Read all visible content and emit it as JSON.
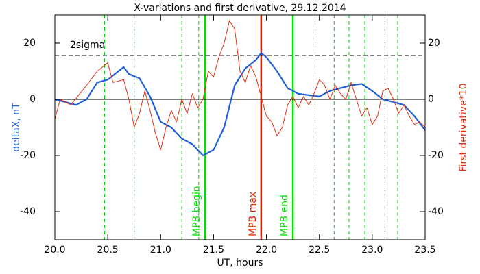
{
  "chart_data": {
    "type": "line",
    "title": "X-variations and first derivative, 29.12.2014",
    "xlabel": "UT, hours",
    "ylabel": "deltaX, nT",
    "y2label": "First derivative*10",
    "ylabel_color": "#1f5fd6",
    "y2label_color": "#e03010",
    "xlim": [
      20,
      23.5
    ],
    "xticks": [
      {
        "value": 20,
        "label": "20.0"
      },
      {
        "value": 20.5,
        "label": "20.5"
      },
      {
        "value": 21,
        "label": "21.0"
      },
      {
        "value": 21.5,
        "label": "21.5"
      },
      {
        "value": 22,
        "label": "22.0"
      },
      {
        "value": 22.5,
        "label": "22.5"
      },
      {
        "value": 23,
        "label": "23.0"
      },
      {
        "value": 23.5,
        "label": "23.5"
      }
    ],
    "ylim": [
      -50,
      30
    ],
    "yticks": [
      -40,
      -20,
      0,
      20
    ],
    "y2lim": [
      -50,
      30
    ],
    "y2ticks": [
      -40,
      -20,
      0,
      20
    ],
    "series": [
      {
        "color": "#1f5fd6",
        "width": 2.2,
        "x": [
          20.0,
          20.1,
          20.2,
          20.3,
          20.4,
          20.5,
          20.6,
          20.65,
          20.7,
          20.8,
          20.9,
          21.0,
          21.1,
          21.2,
          21.3,
          21.4,
          21.5,
          21.6,
          21.7,
          21.8,
          21.9,
          21.95,
          22.0,
          22.1,
          22.2,
          22.3,
          22.4,
          22.5,
          22.6,
          22.7,
          22.8,
          22.9,
          23.0,
          23.1,
          23.2,
          23.3,
          23.4,
          23.5
        ],
        "values": [
          0,
          -1,
          -2,
          0,
          6,
          7,
          10,
          11.5,
          9,
          7.5,
          1,
          -8,
          -10,
          -14,
          -16,
          -20,
          -18,
          -10,
          5,
          11,
          14,
          16.5,
          15,
          10,
          4,
          2,
          1.5,
          1,
          3,
          4,
          5,
          5.5,
          3,
          0,
          -1,
          -2,
          -6,
          -11
        ]
      },
      {
        "color": "#e03010",
        "width": 1,
        "axis": "y2",
        "x": [
          20.0,
          20.05,
          20.15,
          20.3,
          20.4,
          20.5,
          20.55,
          20.65,
          20.7,
          20.75,
          20.8,
          20.85,
          20.9,
          20.95,
          21.0,
          21.05,
          21.1,
          21.15,
          21.2,
          21.25,
          21.3,
          21.35,
          21.4,
          21.45,
          21.5,
          21.55,
          21.6,
          21.65,
          21.7,
          21.75,
          21.8,
          21.85,
          21.9,
          21.95,
          22.0,
          22.05,
          22.1,
          22.15,
          22.2,
          22.25,
          22.3,
          22.35,
          22.4,
          22.45,
          22.5,
          22.55,
          22.6,
          22.65,
          22.7,
          22.75,
          22.8,
          22.85,
          22.9,
          22.95,
          23.0,
          23.05,
          23.1,
          23.15,
          23.2,
          23.25,
          23.3,
          23.35,
          23.4,
          23.45,
          23.5
        ],
        "values": [
          -7,
          0,
          -2,
          5,
          10,
          13,
          6,
          7,
          0,
          -10,
          -5,
          3,
          -4,
          -12,
          -18,
          -10,
          -4,
          -8,
          0,
          -5,
          2,
          -3,
          0,
          10,
          8,
          15,
          20,
          28,
          25,
          10,
          6,
          12,
          8,
          1,
          -6,
          -8,
          -13,
          -10,
          -2,
          1,
          -3,
          1,
          -2,
          2,
          7,
          5,
          0,
          5,
          2,
          0,
          6,
          0,
          -6,
          -3,
          -9,
          -6,
          3,
          4,
          0,
          -5,
          -2,
          -6,
          -9,
          -8,
          -10
        ]
      }
    ],
    "hlines": [
      {
        "y": 0,
        "style": "solid",
        "color": "#000000"
      },
      {
        "y": 15.6,
        "style": "dashed",
        "color": "#000000",
        "label": "2sigma"
      }
    ],
    "vlines": [
      {
        "x": 20.47,
        "style": "dashed",
        "color": "#00d000"
      },
      {
        "x": 20.75,
        "style": "dashed",
        "color": "#00d000"
      },
      {
        "x": 21.2,
        "style": "dashed",
        "color": "#00d000"
      },
      {
        "x": 21.36,
        "style": "dashed",
        "color": "#00d000"
      },
      {
        "x": 21.42,
        "style": "solid",
        "color": "#00e000",
        "label": "MPB begin"
      },
      {
        "x": 21.95,
        "style": "solid",
        "color": "#e02000",
        "label": "MPB max"
      },
      {
        "x": 22.25,
        "style": "solid",
        "color": "#00e000",
        "label": "MPB end"
      },
      {
        "x": 22.46,
        "style": "dashed",
        "color": "#00d000"
      },
      {
        "x": 22.64,
        "style": "dashed",
        "color": "#00d000"
      },
      {
        "x": 22.78,
        "style": "dashed",
        "color": "#00d000"
      },
      {
        "x": 22.93,
        "style": "dashed",
        "color": "#00d000"
      },
      {
        "x": 23.12,
        "style": "dashed",
        "color": "#00d000"
      },
      {
        "x": 23.24,
        "style": "dashed",
        "color": "#00d000"
      }
    ]
  }
}
